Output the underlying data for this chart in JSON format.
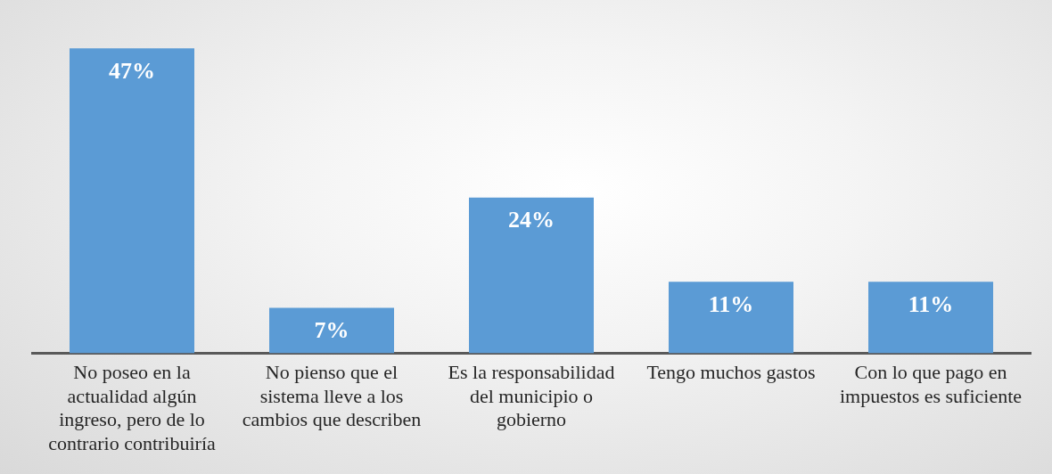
{
  "chart_data": {
    "type": "bar",
    "categories": [
      "No poseo en la actualidad algún ingreso, pero de lo contrario contribuiría",
      "No pienso que el sistema lleve a los cambios que describen",
      "Es la responsabilidad del municipio o gobierno",
      "Tengo muchos gastos",
      "Con lo que pago en impuestos es suficiente"
    ],
    "values": [
      47,
      7,
      24,
      11,
      11
    ],
    "value_labels": [
      "47%",
      "7%",
      "24%",
      "11%",
      "11%"
    ],
    "color": "#5b9bd5",
    "grid": false,
    "legend": false,
    "tick_labels": "x"
  }
}
